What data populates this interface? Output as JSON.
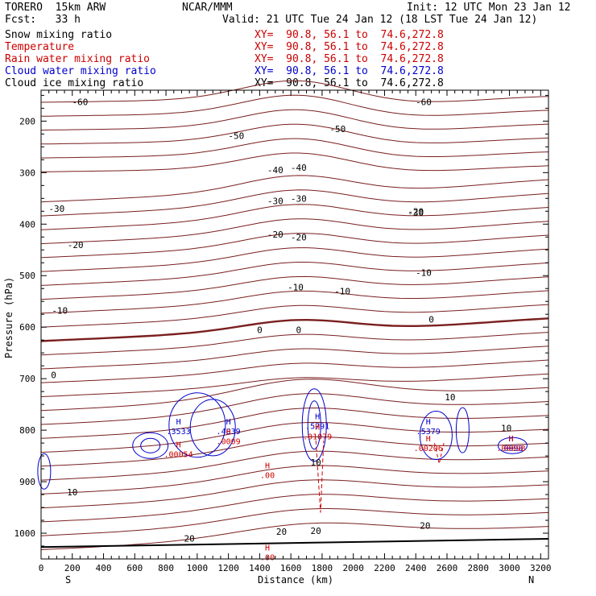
{
  "header": {
    "model": "TORERO  15km ARW",
    "center": "NCAR/MMM",
    "init": "Init: 12 UTC Mon 23 Jan 12",
    "fcst": "Fcst:   33 h",
    "valid": "Valid: 21 UTC Tue 24 Jan 12 (18 LST Tue 24 Jan 12)"
  },
  "fields": [
    {
      "name": "Snow mixing ratio",
      "xy": "XY=  90.8, 56.1 to  74.6,272.8",
      "color": "#000000"
    },
    {
      "name": "Temperature",
      "xy": "XY=  90.8, 56.1 to  74.6,272.8",
      "color": "#cc0000"
    },
    {
      "name": "Rain water mixing ratio",
      "xy": "XY=  90.8, 56.1 to  74.6,272.8",
      "color": "#cc0000"
    },
    {
      "name": "Cloud water mixing ratio",
      "xy": "XY=  90.8, 56.1 to  74.6,272.8",
      "color": "#0000cc"
    },
    {
      "name": "Cloud ice mixing ratio",
      "xy": "XY=  90.8, 56.1 to  74.6,272.8",
      "color": "#000000"
    }
  ],
  "chart_data": {
    "type": "line",
    "subtype": "vertical cross-section contour plot",
    "xlabel": "Distance (km)",
    "ylabel": "Pressure (hPa)",
    "xlim": [
      0,
      3250
    ],
    "ylim": [
      1050,
      140
    ],
    "x_ticks": [
      0,
      200,
      400,
      600,
      800,
      1000,
      1200,
      1400,
      1600,
      1800,
      2000,
      2200,
      2400,
      2600,
      2800,
      3000,
      3200
    ],
    "y_ticks": [
      200,
      300,
      400,
      500,
      600,
      700,
      800,
      900,
      1000
    ],
    "end_labels": {
      "left": "S",
      "right": "N"
    },
    "temperature_color": "#7a1f1f",
    "temperature_isotherms": [
      {
        "value": -60,
        "labels": [
          {
            "x": 250,
            "p": 163
          },
          {
            "x": 2450,
            "p": 163
          }
        ]
      },
      {
        "value": -50,
        "labels": [
          {
            "x": 1250,
            "p": 228
          },
          {
            "x": 1900,
            "p": 215
          }
        ]
      },
      {
        "value": -40,
        "labels": [
          {
            "x": 1500,
            "p": 295
          },
          {
            "x": 1650,
            "p": 290
          }
        ]
      },
      {
        "value": -30,
        "labels": [
          {
            "x": 100,
            "p": 370
          },
          {
            "x": 1500,
            "p": 355
          },
          {
            "x": 1650,
            "p": 350
          },
          {
            "x": 2400,
            "p": 378
          }
        ]
      },
      {
        "value": -20,
        "labels": [
          {
            "x": 220,
            "p": 440
          },
          {
            "x": 1500,
            "p": 420
          },
          {
            "x": 1650,
            "p": 425
          },
          {
            "x": 2400,
            "p": 375
          }
        ]
      },
      {
        "value": -10,
        "labels": [
          {
            "x": 120,
            "p": 568
          },
          {
            "x": 1630,
            "p": 522
          },
          {
            "x": 1930,
            "p": 530
          },
          {
            "x": 2450,
            "p": 494
          }
        ]
      },
      {
        "value": 0,
        "labels": [
          {
            "x": 80,
            "p": 693
          },
          {
            "x": 1400,
            "p": 605
          },
          {
            "x": 1650,
            "p": 605
          },
          {
            "x": 2500,
            "p": 585
          }
        ]
      },
      {
        "value": 10,
        "labels": [
          {
            "x": 200,
            "p": 920
          },
          {
            "x": 1760,
            "p": 862
          },
          {
            "x": 2620,
            "p": 736
          },
          {
            "x": 2980,
            "p": 796
          }
        ]
      },
      {
        "value": 20,
        "labels": [
          {
            "x": 950,
            "p": 1010
          },
          {
            "x": 1540,
            "p": 997
          },
          {
            "x": 1760,
            "p": 995
          },
          {
            "x": 2460,
            "p": 985
          }
        ]
      }
    ],
    "maxima": [
      {
        "field": "Cloud water mixing ratio",
        "x": 880,
        "p": 795,
        "value": ".3533"
      },
      {
        "field": "Rain water mixing ratio",
        "x": 880,
        "p": 840,
        "value": ".00054"
      },
      {
        "field": "Cloud water mixing ratio",
        "x": 1200,
        "p": 795,
        "value": ".4039"
      },
      {
        "field": "Rain water mixing ratio",
        "x": 1200,
        "p": 815,
        "value": ".0009"
      },
      {
        "field": "Rain water mixing ratio",
        "x": 1450,
        "p": 880,
        "value": ".00"
      },
      {
        "field": "Cloud water mixing ratio",
        "x": 1770,
        "p": 785,
        "value": ".5791"
      },
      {
        "field": "Rain water mixing ratio",
        "x": 1770,
        "p": 805,
        "value": ".01079"
      },
      {
        "field": "Cloud water mixing ratio",
        "x": 2480,
        "p": 795,
        "value": ".5379"
      },
      {
        "field": "Rain water mixing ratio",
        "x": 2480,
        "p": 828,
        "value": ".00206"
      },
      {
        "field": "Cloud water mixing ratio",
        "x": 3010,
        "p": 828,
        "value": ".0098"
      },
      {
        "field": "Rain water mixing ratio",
        "x": 3010,
        "p": 828,
        "value": ".00098"
      },
      {
        "field": "Rain water mixing ratio",
        "x": 1450,
        "p": 1040,
        "value": ".00"
      }
    ]
  }
}
